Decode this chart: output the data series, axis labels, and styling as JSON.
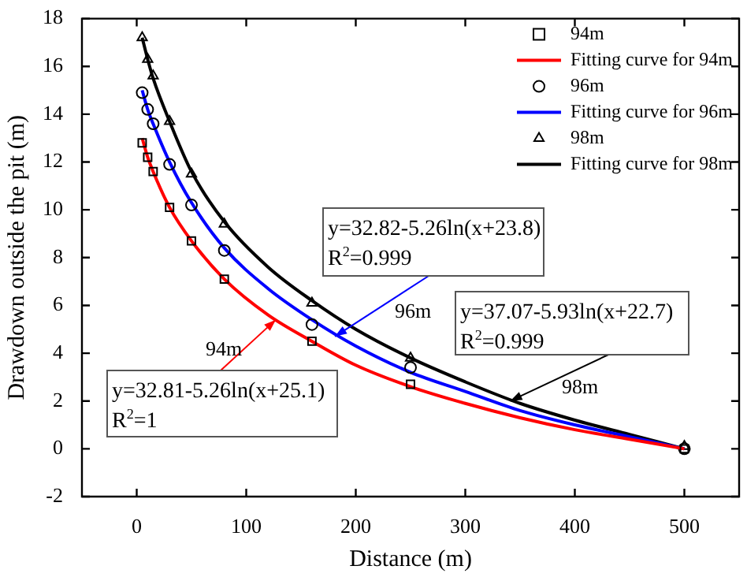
{
  "chart_data": {
    "type": "scatter",
    "xlabel": "Distance (m)",
    "ylabel": "Drawdown outside the pit (m)",
    "xlim": [
      -50,
      550
    ],
    "xticks": [
      0,
      100,
      200,
      300,
      400,
      500
    ],
    "ylim": [
      -2,
      18
    ],
    "yticks": [
      -2,
      0,
      2,
      4,
      6,
      8,
      10,
      12,
      14,
      16,
      18
    ],
    "grid": false,
    "legend": "top right",
    "series": [
      {
        "name": "94m",
        "type": "scatter",
        "marker": "square",
        "color": "#000000",
        "x": [
          5,
          10,
          15,
          30,
          50,
          80,
          160,
          250,
          500
        ],
        "values": [
          12.8,
          12.2,
          11.6,
          10.1,
          8.7,
          7.1,
          4.5,
          2.7,
          0
        ]
      },
      {
        "name": "Fitting curve for 94m",
        "type": "line",
        "marker": "none",
        "color": "#ff0000",
        "x": [
          5,
          10,
          15,
          30,
          50,
          80,
          120,
          160,
          200,
          250,
          300,
          350,
          400,
          450,
          500
        ],
        "values": [
          13.0,
          12.2,
          11.6,
          10.1,
          8.7,
          7.1,
          5.6,
          4.5,
          3.5,
          2.6,
          1.9,
          1.3,
          0.8,
          0.4,
          0
        ]
      },
      {
        "name": "96m",
        "type": "scatter",
        "marker": "circle",
        "color": "#000000",
        "x": [
          5,
          10,
          15,
          30,
          50,
          80,
          160,
          250,
          500
        ],
        "values": [
          14.9,
          14.2,
          13.6,
          11.9,
          10.2,
          8.3,
          5.2,
          3.4,
          0
        ]
      },
      {
        "name": "Fitting curve for 96m",
        "type": "line",
        "marker": "none",
        "color": "#0000ff",
        "x": [
          5,
          10,
          15,
          30,
          50,
          80,
          120,
          160,
          200,
          250,
          300,
          350,
          400,
          450,
          500
        ],
        "values": [
          15.0,
          14.2,
          13.6,
          12.0,
          10.3,
          8.4,
          6.7,
          5.4,
          4.3,
          3.2,
          2.4,
          1.6,
          1.0,
          0.5,
          0
        ]
      },
      {
        "name": "98m",
        "type": "scatter",
        "marker": "triangle",
        "color": "#000000",
        "x": [
          5,
          10,
          15,
          30,
          50,
          80,
          160,
          250,
          500
        ],
        "values": [
          17.2,
          16.3,
          15.6,
          13.7,
          11.5,
          9.4,
          6.1,
          3.8,
          0.1
        ]
      },
      {
        "name": "Fitting curve for 98m",
        "type": "line",
        "marker": "none",
        "color": "#000000",
        "x": [
          5,
          10,
          15,
          30,
          50,
          80,
          120,
          160,
          200,
          250,
          300,
          350,
          400,
          450,
          500
        ],
        "values": [
          17.2,
          16.3,
          15.5,
          13.7,
          11.6,
          9.5,
          7.6,
          6.2,
          5.0,
          3.8,
          2.8,
          1.9,
          1.2,
          0.6,
          0
        ]
      }
    ],
    "annotations": [
      {
        "text": "y=32.82-5.26ln(x+23.8)\nR$^{2}$=0.999",
        "x": 181,
        "y": 4.7
      },
      "96m",
      {
        "text": "y=32.81-5.26ln(x+25.1)\nR$^{2}$=1",
        "x": 127,
        "y": 5.4
      },
      "94m",
      {
        "text": "y=37.07-5.93ln(x+22.7)\nR$^{2}$=0.999",
        "x": 341,
        "y": 2.0
      },
      "98m"
    ]
  }
}
